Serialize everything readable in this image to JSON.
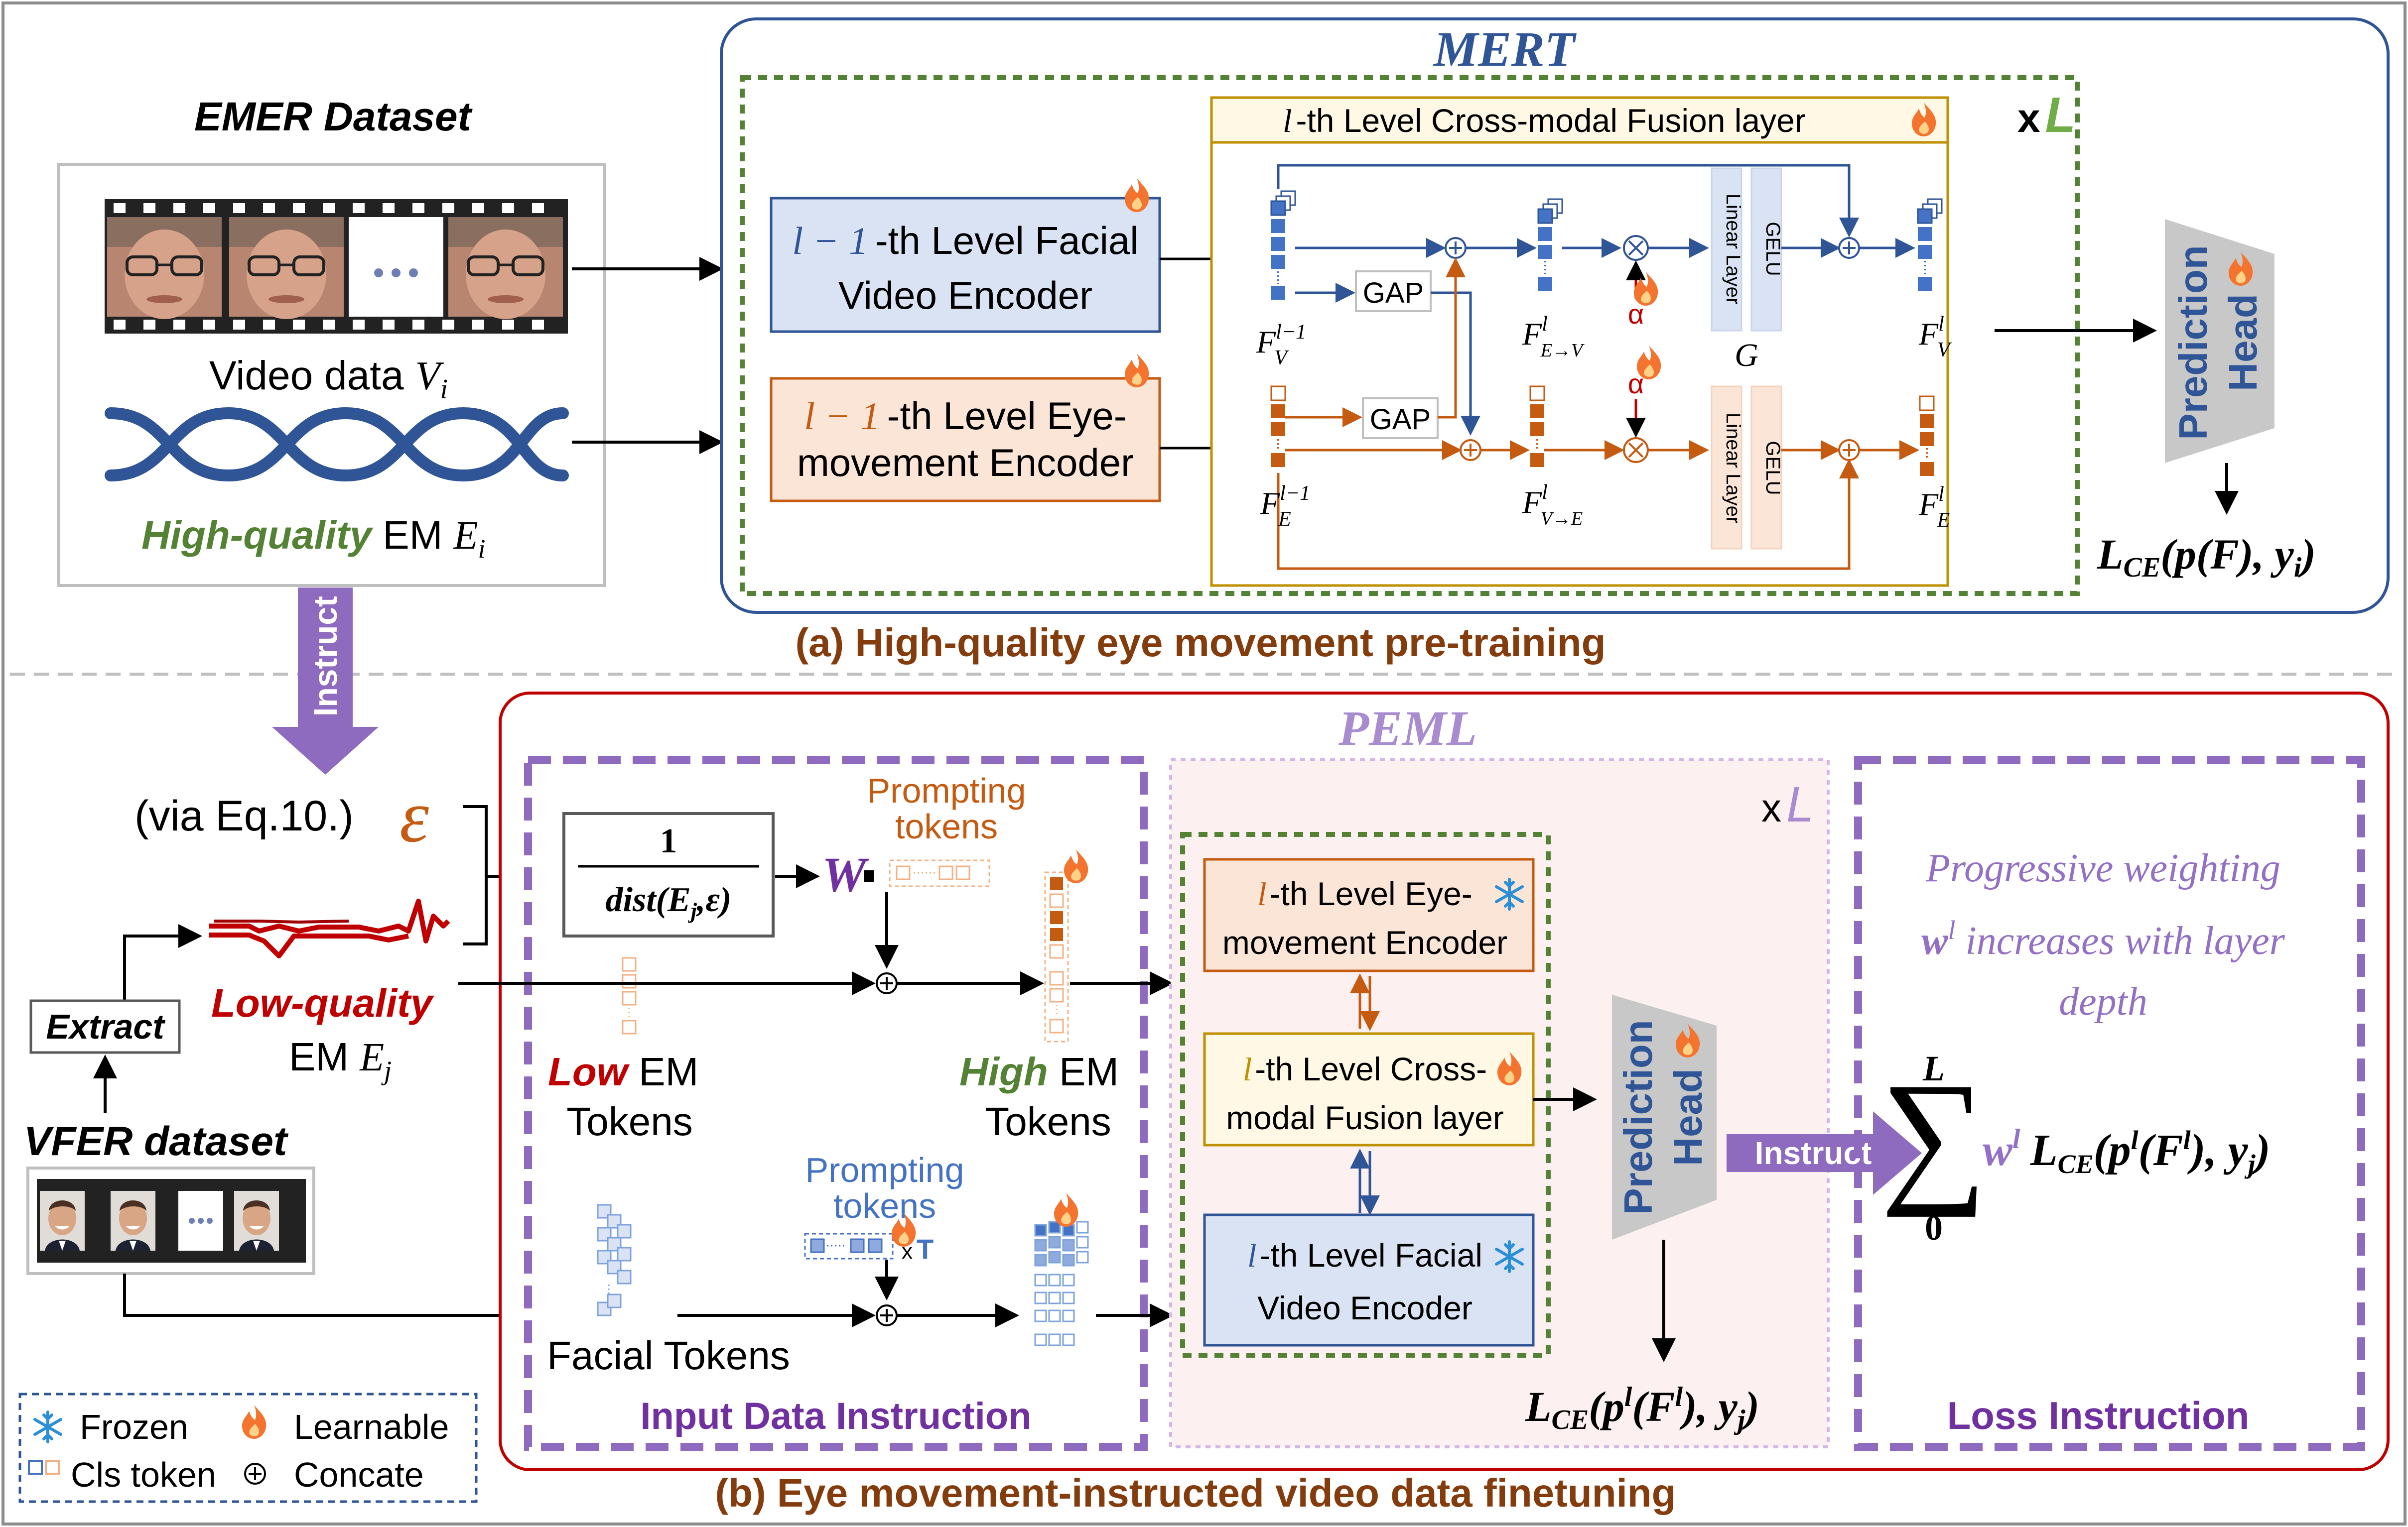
{
  "colors": {
    "blue": "#2f5597",
    "orange": "#c55a11",
    "purple": "#7f5fb0",
    "green": "#548235",
    "red": "#c00000",
    "gold": "#bf9000",
    "brown": "#843c0c"
  },
  "top": {
    "dataset_title": "EMER Dataset",
    "video_data_label": "Video data",
    "video_var": "V",
    "video_sub": "i",
    "hq_label": "High-quality",
    "em_label": "EM",
    "em_var": "E",
    "em_sub": "i",
    "mert_title": "MERT",
    "fusion_layer_title": "-th Level Cross-modal Fusion layer",
    "l_symbol": "l",
    "x_mult": "x",
    "L_symbol": "L",
    "facial_encoder_pre": "l − 1",
    "facial_encoder_line1": "-th Level Facial",
    "facial_encoder_line2": "Video Encoder",
    "eye_encoder_pre": "l − 1",
    "eye_encoder_line1": "-th Level Eye-",
    "eye_encoder_line2": "movement Encoder",
    "gap": "GAP",
    "alpha": "α",
    "linear_layer": "Linear Layer",
    "gelu": "GELU",
    "g_label": "G",
    "f_v_prev_base": "F",
    "f_v_prev_sub": "V",
    "f_v_prev_sup": "l−1",
    "f_e_prev_base": "F",
    "f_e_prev_sub": "E",
    "f_e_prev_sup": "l−1",
    "f_ev_base": "F",
    "f_ev_sub": "E→V",
    "f_ev_sup": "l",
    "f_ve_base": "F",
    "f_ve_sub": "V→E",
    "f_ve_sup": "l",
    "f_v_out_base": "F",
    "f_v_out_sub": "V",
    "f_v_out_sup": "l",
    "f_e_out_base": "F",
    "f_e_out_sub": "E",
    "f_e_out_sup": "l",
    "prediction_head_line1": "Prediction",
    "prediction_head_line2": "Head",
    "loss_label": "L",
    "loss_sub": "CE",
    "loss_args": "(p(F), y",
    "loss_args_sub": "i",
    "loss_close": ")",
    "caption": "(a) High-quality eye movement pre-training"
  },
  "middle": {
    "instruct_arrow": "Instruct"
  },
  "bottom": {
    "via_eq": "(via Eq.10.)",
    "epsilon": "ε",
    "extract": "Extract",
    "vfer_title": "VFER dataset",
    "lq_label": "Low-quality",
    "lq_em": "EM",
    "lq_var": "E",
    "lq_sub": "j",
    "peml_title": "PEML",
    "formula_num": "1",
    "formula_den": "dist(E",
    "formula_den_sub": "j",
    "formula_den_rest": ",ε)",
    "w_symbol": "W",
    "prompting_tokens_line1": "Prompting",
    "prompting_tokens_line2": "tokens",
    "low_tokens_word": "Low",
    "low_tokens_em": "EM",
    "low_tokens_line2": "Tokens",
    "high_tokens_word": "High",
    "high_tokens_em": "EM",
    "high_tokens_line2": "Tokens",
    "prompt_blue_line1": "Prompting",
    "prompt_blue_line2": "tokens",
    "x_t": "x",
    "t_symbol": "T",
    "facial_tokens": "Facial Tokens",
    "input_data_instruction": "Input Data Instruction",
    "x_mult": "x",
    "L_symbol": "L",
    "eye_encoder_line1": "-th Level Eye-",
    "eye_encoder_line2": "movement Encoder",
    "fusion_line1": "-th Level Cross-",
    "fusion_line2": "modal Fusion layer",
    "facial_encoder_line1": "-th Level Facial",
    "facial_encoder_line2": "Video Encoder",
    "l_symbol": "l",
    "prediction_head_line1": "Prediction",
    "prediction_head_line2": "Head",
    "instruct": "Instruct",
    "loss_b_label": "L",
    "loss_b_sub": "CE",
    "loss_b_args": "(p",
    "loss_b_args2": "(F",
    "loss_b_args3": "), y",
    "loss_b_args_sub": "j",
    "loss_b_close": ")",
    "sum_top": "L",
    "sum_bottom": "0",
    "sum_w": "w",
    "sum_w_sup": "l",
    "sum_loss": "L",
    "sum_loss_sub": "CE",
    "sum_args": "(p",
    "sum_args2": "(F",
    "sum_args3": "), y",
    "sum_args_sub": "j",
    "sum_close": ")",
    "progressive_line1": "Progressive weighting",
    "progressive_line2_w": "w",
    "progressive_line2_sup": "l",
    "progressive_line2_rest": " increases  with layer",
    "progressive_line3": "depth",
    "loss_instruction": "Loss Instruction",
    "caption": "(b)  Eye movement-instructed video data finetuning"
  },
  "legend": {
    "frozen": "Frozen",
    "learnable": "Learnable",
    "cls_token": "Cls token",
    "concate": "Concate"
  }
}
